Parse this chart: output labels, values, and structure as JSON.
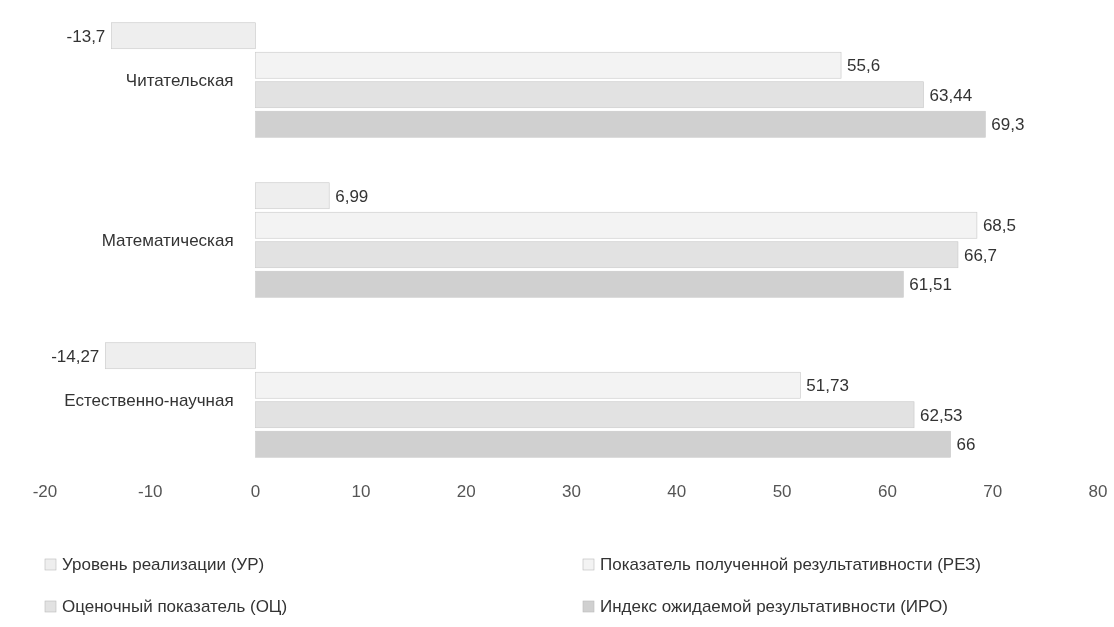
{
  "chart_data": {
    "type": "bar",
    "orientation": "horizontal",
    "categories": [
      "Читательская",
      "Математическая",
      "Естественно-научная"
    ],
    "series": [
      {
        "name": "Уровень реализации (УР)",
        "color": "#eeeeee",
        "values": [
          -13.7,
          6.99,
          -14.27
        ],
        "value_labels": [
          "-13,7",
          "6,99",
          "-14,27"
        ]
      },
      {
        "name": "Показатель полученной результативности (РЕЗ)",
        "color": "#f3f3f3",
        "values": [
          55.6,
          68.5,
          51.73
        ],
        "value_labels": [
          "55,6",
          "68,5",
          "51,73"
        ]
      },
      {
        "name": "Оценочный показатель (ОЦ)",
        "color": "#e2e2e2",
        "values": [
          63.44,
          66.7,
          62.53
        ],
        "value_labels": [
          "63,44",
          "66,7",
          "62,53"
        ]
      },
      {
        "name": "Индекс ожидаемой результативности (ИРО)",
        "color": "#d0d0d0",
        "values": [
          69.3,
          61.51,
          66
        ],
        "value_labels": [
          "69,3",
          "61,51",
          "66"
        ]
      }
    ],
    "xlim": [
      -20,
      80
    ],
    "xticks": [
      -20,
      -10,
      0,
      10,
      20,
      30,
      40,
      50,
      60,
      70,
      80
    ],
    "grid": false,
    "legend": "bottom"
  }
}
